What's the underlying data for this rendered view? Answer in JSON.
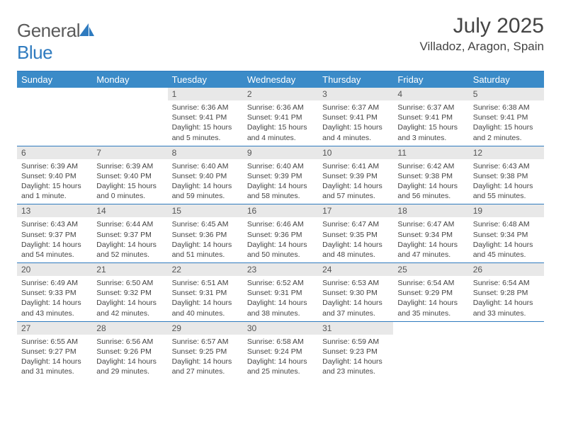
{
  "brand": {
    "part1": "General",
    "part2": "Blue"
  },
  "title": "July 2025",
  "location": "Villadoz, Aragon, Spain",
  "colors": {
    "header_bg": "#3b8bc8",
    "rule": "#2f7bbf",
    "daynum_bg": "#e8e8e8",
    "text": "#444444"
  },
  "daysOfWeek": [
    "Sunday",
    "Monday",
    "Tuesday",
    "Wednesday",
    "Thursday",
    "Friday",
    "Saturday"
  ],
  "weeks": [
    [
      null,
      null,
      {
        "n": "1",
        "sr": "6:36 AM",
        "ss": "9:41 PM",
        "dl": "15 hours and 5 minutes."
      },
      {
        "n": "2",
        "sr": "6:36 AM",
        "ss": "9:41 PM",
        "dl": "15 hours and 4 minutes."
      },
      {
        "n": "3",
        "sr": "6:37 AM",
        "ss": "9:41 PM",
        "dl": "15 hours and 4 minutes."
      },
      {
        "n": "4",
        "sr": "6:37 AM",
        "ss": "9:41 PM",
        "dl": "15 hours and 3 minutes."
      },
      {
        "n": "5",
        "sr": "6:38 AM",
        "ss": "9:41 PM",
        "dl": "15 hours and 2 minutes."
      }
    ],
    [
      {
        "n": "6",
        "sr": "6:39 AM",
        "ss": "9:40 PM",
        "dl": "15 hours and 1 minute."
      },
      {
        "n": "7",
        "sr": "6:39 AM",
        "ss": "9:40 PM",
        "dl": "15 hours and 0 minutes."
      },
      {
        "n": "8",
        "sr": "6:40 AM",
        "ss": "9:40 PM",
        "dl": "14 hours and 59 minutes."
      },
      {
        "n": "9",
        "sr": "6:40 AM",
        "ss": "9:39 PM",
        "dl": "14 hours and 58 minutes."
      },
      {
        "n": "10",
        "sr": "6:41 AM",
        "ss": "9:39 PM",
        "dl": "14 hours and 57 minutes."
      },
      {
        "n": "11",
        "sr": "6:42 AM",
        "ss": "9:38 PM",
        "dl": "14 hours and 56 minutes."
      },
      {
        "n": "12",
        "sr": "6:43 AM",
        "ss": "9:38 PM",
        "dl": "14 hours and 55 minutes."
      }
    ],
    [
      {
        "n": "13",
        "sr": "6:43 AM",
        "ss": "9:37 PM",
        "dl": "14 hours and 54 minutes."
      },
      {
        "n": "14",
        "sr": "6:44 AM",
        "ss": "9:37 PM",
        "dl": "14 hours and 52 minutes."
      },
      {
        "n": "15",
        "sr": "6:45 AM",
        "ss": "9:36 PM",
        "dl": "14 hours and 51 minutes."
      },
      {
        "n": "16",
        "sr": "6:46 AM",
        "ss": "9:36 PM",
        "dl": "14 hours and 50 minutes."
      },
      {
        "n": "17",
        "sr": "6:47 AM",
        "ss": "9:35 PM",
        "dl": "14 hours and 48 minutes."
      },
      {
        "n": "18",
        "sr": "6:47 AM",
        "ss": "9:34 PM",
        "dl": "14 hours and 47 minutes."
      },
      {
        "n": "19",
        "sr": "6:48 AM",
        "ss": "9:34 PM",
        "dl": "14 hours and 45 minutes."
      }
    ],
    [
      {
        "n": "20",
        "sr": "6:49 AM",
        "ss": "9:33 PM",
        "dl": "14 hours and 43 minutes."
      },
      {
        "n": "21",
        "sr": "6:50 AM",
        "ss": "9:32 PM",
        "dl": "14 hours and 42 minutes."
      },
      {
        "n": "22",
        "sr": "6:51 AM",
        "ss": "9:31 PM",
        "dl": "14 hours and 40 minutes."
      },
      {
        "n": "23",
        "sr": "6:52 AM",
        "ss": "9:31 PM",
        "dl": "14 hours and 38 minutes."
      },
      {
        "n": "24",
        "sr": "6:53 AM",
        "ss": "9:30 PM",
        "dl": "14 hours and 37 minutes."
      },
      {
        "n": "25",
        "sr": "6:54 AM",
        "ss": "9:29 PM",
        "dl": "14 hours and 35 minutes."
      },
      {
        "n": "26",
        "sr": "6:54 AM",
        "ss": "9:28 PM",
        "dl": "14 hours and 33 minutes."
      }
    ],
    [
      {
        "n": "27",
        "sr": "6:55 AM",
        "ss": "9:27 PM",
        "dl": "14 hours and 31 minutes."
      },
      {
        "n": "28",
        "sr": "6:56 AM",
        "ss": "9:26 PM",
        "dl": "14 hours and 29 minutes."
      },
      {
        "n": "29",
        "sr": "6:57 AM",
        "ss": "9:25 PM",
        "dl": "14 hours and 27 minutes."
      },
      {
        "n": "30",
        "sr": "6:58 AM",
        "ss": "9:24 PM",
        "dl": "14 hours and 25 minutes."
      },
      {
        "n": "31",
        "sr": "6:59 AM",
        "ss": "9:23 PM",
        "dl": "14 hours and 23 minutes."
      },
      null,
      null
    ]
  ]
}
